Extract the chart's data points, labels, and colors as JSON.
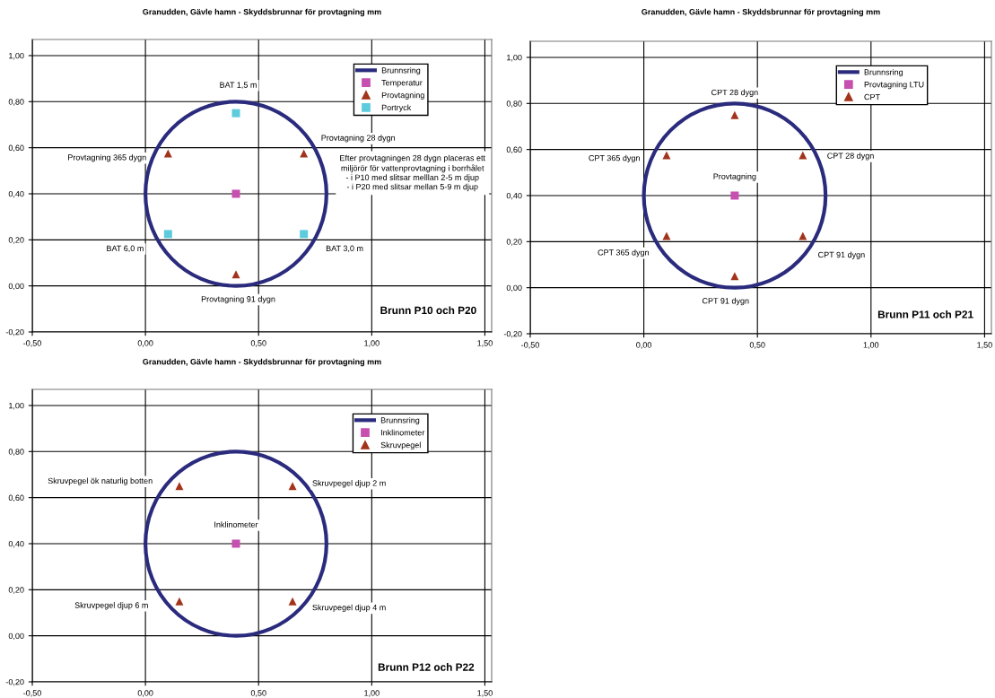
{
  "chart_data": [
    {
      "type": "scatter",
      "title": "Granudden, Gävle hamn - Skyddsbrunnar för provtagning mm",
      "series": [
        {
          "name": "Brunnsring",
          "type": "line",
          "color": "#2b2b7e"
        },
        {
          "name": "Temperatur",
          "color": "#c64fb0",
          "marker": "square",
          "x": [
            0.4
          ],
          "values": [
            0.4
          ]
        },
        {
          "name": "Provtagning",
          "color": "#a3341c",
          "marker": "triangle",
          "x": [
            0.1,
            0.7,
            0.4
          ],
          "values": [
            0.575,
            0.575,
            0.05
          ]
        },
        {
          "name": "Portryck",
          "color": "#5ccbdc",
          "marker": "square",
          "x": [
            0.4,
            0.1,
            0.7
          ],
          "values": [
            0.75,
            0.225,
            0.225
          ]
        }
      ],
      "xlim": [
        -0.5,
        1.53
      ],
      "ylim": [
        -0.2,
        1.07
      ],
      "xticks": [
        {
          "value": -0.5,
          "label": "-0,50"
        },
        {
          "value": 0,
          "label": "0,00"
        },
        {
          "value": 0.5,
          "label": "0,50"
        },
        {
          "value": 1.0,
          "label": "1,00"
        },
        {
          "value": 1.5,
          "label": "1,50"
        }
      ],
      "yticks": [
        {
          "value": -0.2,
          "label": "-0,20"
        },
        {
          "value": 0,
          "label": "0,00"
        },
        {
          "value": 0.2,
          "label": "0,20"
        },
        {
          "value": 0.4,
          "label": "0,40"
        },
        {
          "value": 0.6,
          "label": "0,60"
        },
        {
          "value": 0.8,
          "label": "0,80"
        },
        {
          "value": 1.0,
          "label": "1,00"
        }
      ],
      "grid": true,
      "legend": "top right",
      "annotations": [
        "BAT 1,5 m",
        "Provtagning 28 dygn",
        "Provtagning 365 dygn",
        "BAT 6,0 m",
        "BAT 3,0 m",
        "Provtagning 91 dygn",
        "Brunn P10 och P20",
        "Efter provtagningen 28 dygn placeras ett\nmiljörör för vattenprovtagning i borrhålet\n- i P10 med slitsar melllan 2-5 m djup\n- i P20 med slitsar mellan 5-9 m djup"
      ]
    },
    {
      "type": "scatter",
      "title": "Granudden, Gävle hamn - Skyddsbrunnar för provtagning mm",
      "series": [
        {
          "name": "Brunnsring",
          "type": "line",
          "color": "#2b2b7e"
        },
        {
          "name": "Provtagning LTU",
          "color": "#c64fb0",
          "marker": "square",
          "x": [
            0.4
          ],
          "values": [
            0.4
          ]
        },
        {
          "name": "CPT",
          "color": "#a3341c",
          "marker": "triangle",
          "x": [
            0.4,
            0.1,
            0.7,
            0.1,
            0.7,
            0.4
          ],
          "values": [
            0.75,
            0.575,
            0.575,
            0.225,
            0.225,
            0.05
          ]
        }
      ],
      "xlim": [
        -0.5,
        1.53
      ],
      "ylim": [
        -0.2,
        1.07
      ],
      "xticks": [
        {
          "value": -0.5,
          "label": "-0,50"
        },
        {
          "value": 0,
          "label": "0,00"
        },
        {
          "value": 0.5,
          "label": "0,50"
        },
        {
          "value": 1.0,
          "label": "1,00"
        },
        {
          "value": 1.5,
          "label": "1,50"
        }
      ],
      "yticks": [
        {
          "value": -0.2,
          "label": "-0,20"
        },
        {
          "value": 0,
          "label": "0,00"
        },
        {
          "value": 0.2,
          "label": "0,20"
        },
        {
          "value": 0.4,
          "label": "0,40"
        },
        {
          "value": 0.6,
          "label": "0,60"
        },
        {
          "value": 0.8,
          "label": "0,80"
        },
        {
          "value": 1.0,
          "label": "1,00"
        }
      ],
      "grid": true,
      "legend": "top right",
      "annotations": [
        "CPT 28 dygn",
        "CPT 365 dygn",
        "CPT 28 dygn",
        "Provtagning",
        "CPT 365 dygn",
        "CPT 91 dygn",
        "CPT 91 dygn",
        "Brunn P11 och P21"
      ]
    },
    {
      "type": "scatter",
      "title": "Granudden, Gävle hamn - Skyddsbrunnar för provtagning mm",
      "series": [
        {
          "name": "Brunnsring",
          "type": "line",
          "color": "#2b2b7e"
        },
        {
          "name": "Inklinometer",
          "color": "#c64fb0",
          "marker": "square",
          "x": [
            0.4
          ],
          "values": [
            0.4
          ]
        },
        {
          "name": "Skruvpegel",
          "color": "#a3341c",
          "marker": "triangle",
          "x": [
            0.15,
            0.65,
            0.15,
            0.65
          ],
          "values": [
            0.65,
            0.65,
            0.15,
            0.15
          ]
        }
      ],
      "xlim": [
        -0.5,
        1.53
      ],
      "ylim": [
        -0.2,
        1.07
      ],
      "xticks": [
        {
          "value": -0.5,
          "label": "-0,50"
        },
        {
          "value": 0,
          "label": "0,00"
        },
        {
          "value": 0.5,
          "label": "0,50"
        },
        {
          "value": 1.0,
          "label": "1,00"
        },
        {
          "value": 1.5,
          "label": "1,50"
        }
      ],
      "yticks": [
        {
          "value": -0.2,
          "label": "-0,20"
        },
        {
          "value": 0,
          "label": "0,00"
        },
        {
          "value": 0.2,
          "label": "0,20"
        },
        {
          "value": 0.4,
          "label": "0,40"
        },
        {
          "value": 0.6,
          "label": "0,60"
        },
        {
          "value": 0.8,
          "label": "0,80"
        },
        {
          "value": 1.0,
          "label": "1,00"
        }
      ],
      "grid": true,
      "legend": "top right",
      "annotations": [
        "Skruvpegel ök naturlig botten",
        "Skruvpegel djup 2 m",
        "Inklinometer",
        "Skruvpegel djup 6 m",
        "Skruvpegel djup 4 m",
        "Brunn P12 och P22"
      ]
    }
  ]
}
